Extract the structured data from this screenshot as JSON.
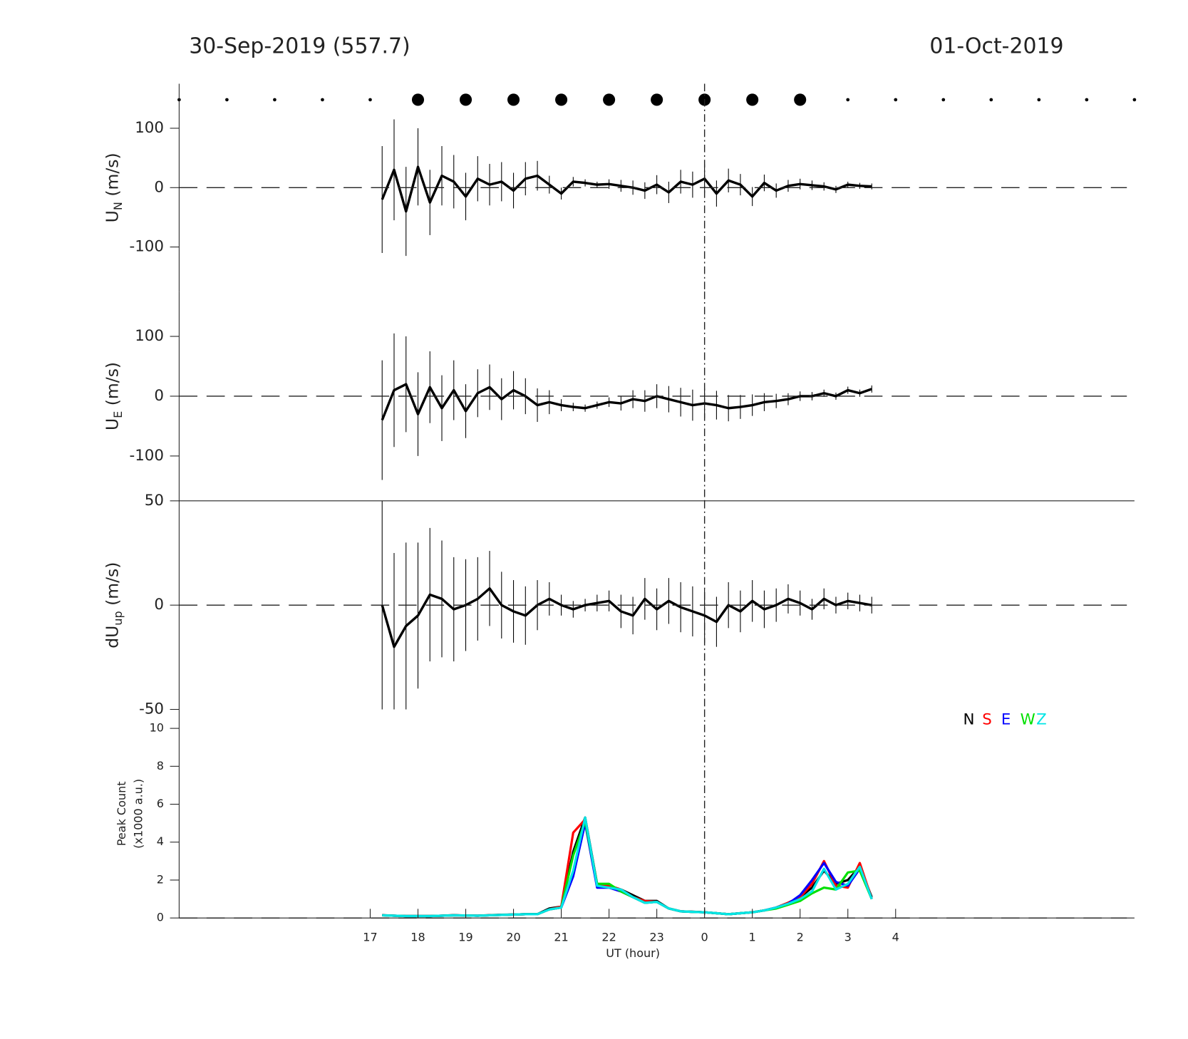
{
  "header": {
    "left": "30-Sep-2019 (557.7)",
    "right": "01-Oct-2019"
  },
  "markers": {
    "x": [
      13,
      14,
      15,
      16,
      17,
      18,
      19,
      20,
      21,
      22,
      23,
      24,
      25,
      26,
      27,
      28,
      29,
      30,
      31,
      32,
      33
    ],
    "large": [
      false,
      false,
      false,
      false,
      false,
      true,
      true,
      true,
      true,
      true,
      true,
      true,
      true,
      true,
      false,
      false,
      false,
      false,
      false,
      false,
      false
    ]
  },
  "chart_data": [
    {
      "type": "errorbar",
      "ylabel": "U",
      "ylabel_sub": "N",
      "ylabel_unit": "(m/s)",
      "xlim": [
        13,
        33
      ],
      "ylim": [
        -175,
        175
      ],
      "yticks": [
        -100,
        0,
        100
      ],
      "hline": 0,
      "vline": 24,
      "x": [
        17.25,
        17.5,
        17.75,
        18,
        18.25,
        18.5,
        18.75,
        19,
        19.25,
        19.5,
        19.75,
        20,
        20.25,
        20.5,
        20.75,
        21,
        21.25,
        21.5,
        21.75,
        22,
        22.25,
        22.5,
        22.75,
        23,
        23.25,
        23.5,
        23.75,
        24,
        24.25,
        24.5,
        24.75,
        25,
        25.25,
        25.5,
        25.75,
        26,
        26.25,
        26.5,
        26.75,
        27,
        27.25,
        27.5
      ],
      "color": "#000000",
      "values": [
        -20,
        30,
        -40,
        35,
        -25,
        20,
        10,
        -15,
        15,
        5,
        10,
        -5,
        15,
        20,
        5,
        -10,
        10,
        8,
        5,
        6,
        3,
        0,
        -5,
        5,
        -8,
        10,
        5,
        15,
        -10,
        12,
        5,
        -15,
        8,
        -5,
        3,
        6,
        4,
        2,
        -3,
        5,
        3,
        2
      ],
      "errors": [
        90,
        85,
        75,
        65,
        55,
        50,
        45,
        40,
        38,
        35,
        33,
        30,
        28,
        25,
        15,
        10,
        8,
        6,
        5,
        8,
        10,
        12,
        14,
        16,
        18,
        20,
        22,
        24,
        22,
        20,
        18,
        16,
        14,
        12,
        10,
        9,
        8,
        7,
        6,
        5,
        5,
        5
      ]
    },
    {
      "type": "errorbar",
      "ylabel": "U",
      "ylabel_sub": "E",
      "ylabel_unit": "(m/s)",
      "xlim": [
        13,
        33
      ],
      "ylim": [
        -175,
        175
      ],
      "yticks": [
        -100,
        0,
        100
      ],
      "hline": 0,
      "vline": 24,
      "x": [
        17.25,
        17.5,
        17.75,
        18,
        18.25,
        18.5,
        18.75,
        19,
        19.25,
        19.5,
        19.75,
        20,
        20.25,
        20.5,
        20.75,
        21,
        21.25,
        21.5,
        21.75,
        22,
        22.25,
        22.5,
        22.75,
        23,
        23.25,
        23.5,
        23.75,
        24,
        24.25,
        24.5,
        24.75,
        25,
        25.25,
        25.5,
        25.75,
        26,
        26.25,
        26.5,
        26.75,
        27,
        27.25,
        27.5
      ],
      "color": "#000000",
      "values": [
        -40,
        10,
        20,
        -30,
        15,
        -20,
        10,
        -25,
        5,
        15,
        -5,
        10,
        0,
        -15,
        -10,
        -15,
        -18,
        -20,
        -15,
        -10,
        -12,
        -5,
        -8,
        0,
        -5,
        -10,
        -15,
        -12,
        -15,
        -20,
        -18,
        -15,
        -10,
        -8,
        -5,
        0,
        0,
        5,
        0,
        10,
        5,
        12
      ],
      "errors": [
        100,
        95,
        80,
        70,
        60,
        55,
        50,
        45,
        40,
        38,
        35,
        32,
        30,
        28,
        20,
        10,
        7,
        6,
        6,
        8,
        12,
        15,
        18,
        20,
        22,
        24,
        26,
        25,
        24,
        22,
        20,
        18,
        15,
        12,
        10,
        8,
        7,
        6,
        6,
        6,
        6,
        6
      ]
    },
    {
      "type": "errorbar",
      "ylabel": "dU",
      "ylabel_sub": "up",
      "ylabel_unit": "(m/s)",
      "xlim": [
        13,
        33
      ],
      "ylim": [
        -50,
        50
      ],
      "yticks": [
        -50,
        0,
        50
      ],
      "hline": 0,
      "vline": 24,
      "x": [
        17.25,
        17.5,
        17.75,
        18,
        18.25,
        18.5,
        18.75,
        19,
        19.25,
        19.5,
        19.75,
        20,
        20.25,
        20.5,
        20.75,
        21,
        21.25,
        21.5,
        21.75,
        22,
        22.25,
        22.5,
        22.75,
        23,
        23.25,
        23.5,
        23.75,
        24,
        24.25,
        24.5,
        24.75,
        25,
        25.25,
        25.5,
        25.75,
        26,
        26.25,
        26.5,
        26.75,
        27,
        27.25,
        27.5
      ],
      "color": "#000000",
      "values": [
        0,
        -20,
        -10,
        -5,
        5,
        3,
        -2,
        0,
        3,
        8,
        0,
        -3,
        -5,
        0,
        3,
        0,
        -2,
        0,
        1,
        2,
        -3,
        -5,
        3,
        -2,
        2,
        -1,
        -3,
        -5,
        -8,
        0,
        -3,
        2,
        -2,
        0,
        3,
        1,
        -2,
        3,
        0,
        2,
        1,
        0
      ],
      "errors": [
        50,
        45,
        40,
        35,
        32,
        28,
        25,
        22,
        20,
        18,
        16,
        15,
        14,
        12,
        8,
        5,
        4,
        3,
        4,
        5,
        8,
        9,
        10,
        10,
        11,
        12,
        12,
        13,
        12,
        11,
        10,
        10,
        9,
        8,
        7,
        6,
        5,
        5,
        4,
        4,
        4,
        4
      ]
    },
    {
      "type": "line",
      "ylabel": "Peak Count",
      "ylabel2": "(x1000 a.u.)",
      "xlabel": "UT (hour)",
      "xlim": [
        13,
        33
      ],
      "ylim": [
        0,
        11
      ],
      "yticks": [
        0,
        2,
        4,
        6,
        8,
        10
      ],
      "hline": 0,
      "vline": 24,
      "xticks": [
        17,
        18,
        19,
        20,
        21,
        22,
        23,
        {
          "value": 24,
          "label": "0"
        },
        {
          "value": 25,
          "label": "1"
        },
        {
          "value": 26,
          "label": "2"
        },
        {
          "value": 27,
          "label": "3"
        },
        {
          "value": 28,
          "label": "4"
        }
      ],
      "x": [
        17.25,
        17.5,
        17.75,
        18,
        18.25,
        18.5,
        18.75,
        19,
        19.25,
        19.5,
        19.75,
        20,
        20.25,
        20.5,
        20.75,
        21,
        21.25,
        21.5,
        21.75,
        22,
        22.25,
        22.5,
        22.75,
        23,
        23.25,
        23.5,
        23.75,
        24,
        24.25,
        24.5,
        24.75,
        25,
        25.25,
        25.5,
        25.75,
        26,
        26.25,
        26.5,
        26.75,
        27,
        27.25,
        27.5
      ],
      "series": [
        {
          "name": "N",
          "color": "#000000",
          "values": [
            0.15,
            0.12,
            0.1,
            0.1,
            0.1,
            0.12,
            0.15,
            0.13,
            0.12,
            0.15,
            0.17,
            0.18,
            0.2,
            0.2,
            0.5,
            0.6,
            3.5,
            5.3,
            1.8,
            1.7,
            1.5,
            1.2,
            0.9,
            0.9,
            0.5,
            0.35,
            0.33,
            0.3,
            0.25,
            0.2,
            0.25,
            0.3,
            0.4,
            0.55,
            0.8,
            1.1,
            1.6,
            2.5,
            1.8,
            2.0,
            2.7,
            1.1
          ]
        },
        {
          "name": "S",
          "color": "#ff0000",
          "values": [
            0.14,
            0.12,
            0.1,
            0.1,
            0.1,
            0.12,
            0.14,
            0.13,
            0.12,
            0.14,
            0.16,
            0.18,
            0.2,
            0.2,
            0.45,
            0.6,
            4.5,
            5.2,
            1.7,
            1.7,
            1.5,
            1.1,
            0.9,
            0.85,
            0.5,
            0.35,
            0.32,
            0.3,
            0.25,
            0.2,
            0.25,
            0.3,
            0.4,
            0.55,
            0.8,
            1.1,
            1.8,
            3.0,
            1.7,
            1.6,
            2.9,
            1.0
          ]
        },
        {
          "name": "E",
          "color": "#0000ff",
          "values": [
            0.14,
            0.12,
            0.1,
            0.1,
            0.1,
            0.12,
            0.14,
            0.13,
            0.12,
            0.14,
            0.16,
            0.18,
            0.2,
            0.2,
            0.45,
            0.55,
            2.2,
            5.0,
            1.6,
            1.6,
            1.4,
            1.1,
            0.8,
            0.85,
            0.5,
            0.35,
            0.32,
            0.3,
            0.25,
            0.2,
            0.25,
            0.3,
            0.4,
            0.55,
            0.75,
            1.2,
            2.0,
            2.9,
            1.9,
            1.7,
            2.6,
            1.0
          ]
        },
        {
          "name": "W",
          "color": "#00e000",
          "values": [
            0.14,
            0.12,
            0.1,
            0.1,
            0.1,
            0.12,
            0.14,
            0.13,
            0.12,
            0.14,
            0.16,
            0.18,
            0.2,
            0.2,
            0.45,
            0.55,
            3.3,
            5.1,
            1.8,
            1.8,
            1.4,
            1.1,
            0.8,
            0.85,
            0.5,
            0.35,
            0.32,
            0.3,
            0.25,
            0.2,
            0.25,
            0.3,
            0.4,
            0.5,
            0.7,
            0.9,
            1.3,
            1.6,
            1.5,
            2.4,
            2.5,
            1.0
          ]
        },
        {
          "name": "Z",
          "color": "#00e5e5",
          "values": [
            0.14,
            0.12,
            0.1,
            0.1,
            0.1,
            0.12,
            0.14,
            0.13,
            0.12,
            0.14,
            0.16,
            0.18,
            0.2,
            0.2,
            0.45,
            0.55,
            2.5,
            5.3,
            1.7,
            1.6,
            1.5,
            1.1,
            0.8,
            0.85,
            0.5,
            0.35,
            0.32,
            0.3,
            0.25,
            0.2,
            0.25,
            0.3,
            0.4,
            0.55,
            0.75,
            1.0,
            1.4,
            2.6,
            1.5,
            1.8,
            2.7,
            1.0
          ]
        }
      ]
    }
  ]
}
